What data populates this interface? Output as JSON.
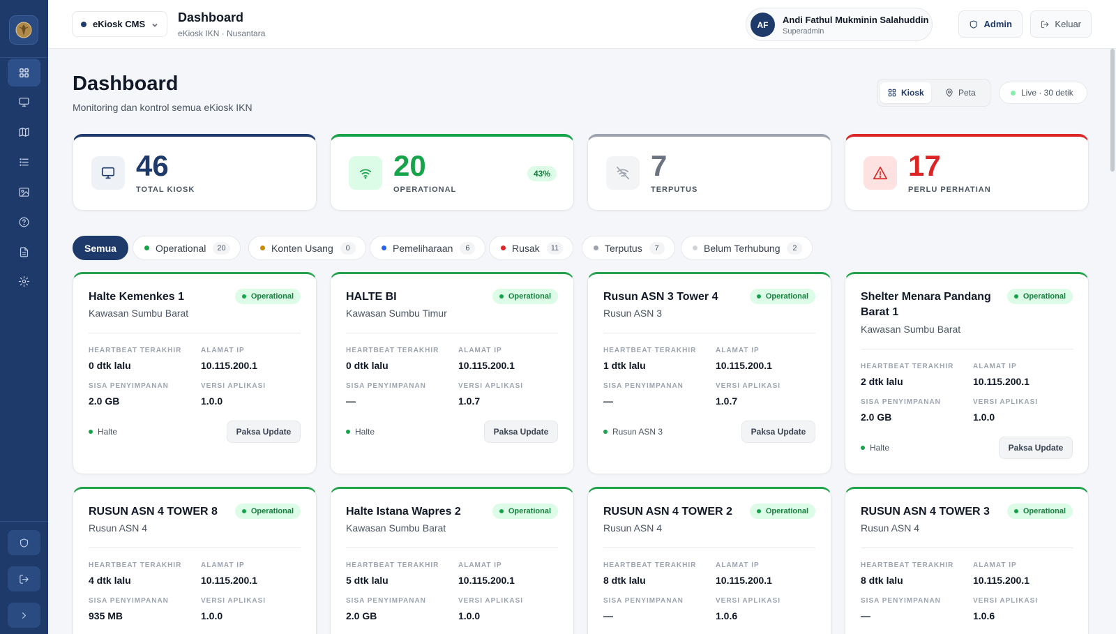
{
  "app": {
    "selector_label": "eKiosk CMS",
    "title": "Dashboard",
    "subtitle": "eKiosk IKN · Nusantara"
  },
  "user": {
    "initials": "AF",
    "name": "Andi Fathul Mukminin Salahuddin",
    "role": "Superadmin"
  },
  "top_actions": {
    "admin_label": "Admin",
    "logout_label": "Keluar"
  },
  "sidebar": {
    "items": [
      {
        "name": "dashboard",
        "icon": "grid-icon",
        "active": true
      },
      {
        "name": "kiosk",
        "icon": "monitor-icon",
        "active": false
      },
      {
        "name": "map",
        "icon": "map-icon",
        "active": false
      },
      {
        "name": "list",
        "icon": "list-icon",
        "active": false
      },
      {
        "name": "media",
        "icon": "image-icon",
        "active": false
      },
      {
        "name": "help",
        "icon": "help-icon",
        "active": false
      },
      {
        "name": "reports",
        "icon": "document-icon",
        "active": false
      },
      {
        "name": "settings",
        "icon": "gear-icon",
        "active": false
      }
    ],
    "bottom": [
      "shield-icon",
      "logout-icon",
      "chevron-right-icon"
    ]
  },
  "page": {
    "title": "Dashboard",
    "subtitle": "Monitoring dan kontrol semua eKiosk IKN",
    "view_kiosk": "Kiosk",
    "view_peta": "Peta",
    "live_label": "Live · 30 detik"
  },
  "stats": [
    {
      "value": "46",
      "label": "TOTAL KIOSK",
      "color": "#1e3a6b",
      "icon": "monitor-icon"
    },
    {
      "value": "20",
      "label": "OPERATIONAL",
      "color": "#16a34a",
      "icon": "wifi-icon",
      "badge": "43%"
    },
    {
      "value": "7",
      "label": "TERPUTUS",
      "color": "#9ca3af",
      "icon": "wifi-off-icon"
    },
    {
      "value": "17",
      "label": "PERLU PERHATIAN",
      "color": "#dc2626",
      "icon": "alert-triangle-icon"
    }
  ],
  "filters": {
    "all": "Semua",
    "chips": [
      {
        "label": "Operational",
        "count": "20",
        "color": "#16a34a"
      },
      {
        "label": "Konten Usang",
        "count": "0",
        "color": "#ca8a04"
      },
      {
        "label": "Pemeliharaan",
        "count": "6",
        "color": "#2563eb"
      },
      {
        "label": "Rusak",
        "count": "11",
        "color": "#dc2626"
      },
      {
        "label": "Terputus",
        "count": "7",
        "color": "#9ca3af"
      },
      {
        "label": "Belum Terhubung",
        "count": "2",
        "color": "#d1d5db"
      }
    ]
  },
  "labels": {
    "heartbeat": "HEARTBEAT TERAKHIR",
    "ip": "ALAMAT IP",
    "storage": "SISA PENYIMPANAN",
    "version": "VERSI APLIKASI",
    "force_update": "Paksa Update"
  },
  "kiosks": [
    {
      "name": "Halte Kemenkes 1",
      "location": "Kawasan Sumbu Barat",
      "status": "Operational",
      "heartbeat": "0 dtk lalu",
      "ip": "10.115.200.1",
      "storage": "2.0 GB",
      "version": "1.0.0",
      "tag": "Halte"
    },
    {
      "name": "HALTE BI",
      "location": "Kawasan Sumbu Timur",
      "status": "Operational",
      "heartbeat": "0 dtk lalu",
      "ip": "10.115.200.1",
      "storage": "—",
      "version": "1.0.7",
      "tag": "Halte"
    },
    {
      "name": "Rusun ASN 3 Tower 4",
      "location": "Rusun ASN 3",
      "status": "Operational",
      "heartbeat": "1 dtk lalu",
      "ip": "10.115.200.1",
      "storage": "—",
      "version": "1.0.7",
      "tag": "Rusun ASN 3"
    },
    {
      "name": "Shelter Menara Pandang Barat 1",
      "location": "Kawasan Sumbu Barat",
      "status": "Operational",
      "heartbeat": "2 dtk lalu",
      "ip": "10.115.200.1",
      "storage": "2.0 GB",
      "version": "1.0.0",
      "tag": "Halte"
    },
    {
      "name": "RUSUN ASN 4 TOWER 8",
      "location": "Rusun ASN 4",
      "status": "Operational",
      "heartbeat": "4 dtk lalu",
      "ip": "10.115.200.1",
      "storage": "935 MB",
      "version": "1.0.0",
      "tag": ""
    },
    {
      "name": "Halte Istana Wapres 2",
      "location": "Kawasan Sumbu Barat",
      "status": "Operational",
      "heartbeat": "5 dtk lalu",
      "ip": "10.115.200.1",
      "storage": "2.0 GB",
      "version": "1.0.0",
      "tag": ""
    },
    {
      "name": "RUSUN ASN 4 TOWER 2",
      "location": "Rusun ASN 4",
      "status": "Operational",
      "heartbeat": "8 dtk lalu",
      "ip": "10.115.200.1",
      "storage": "—",
      "version": "1.0.6",
      "tag": ""
    },
    {
      "name": "RUSUN ASN 4 TOWER 3",
      "location": "Rusun ASN 4",
      "status": "Operational",
      "heartbeat": "8 dtk lalu",
      "ip": "10.115.200.1",
      "storage": "—",
      "version": "1.0.6",
      "tag": ""
    }
  ]
}
